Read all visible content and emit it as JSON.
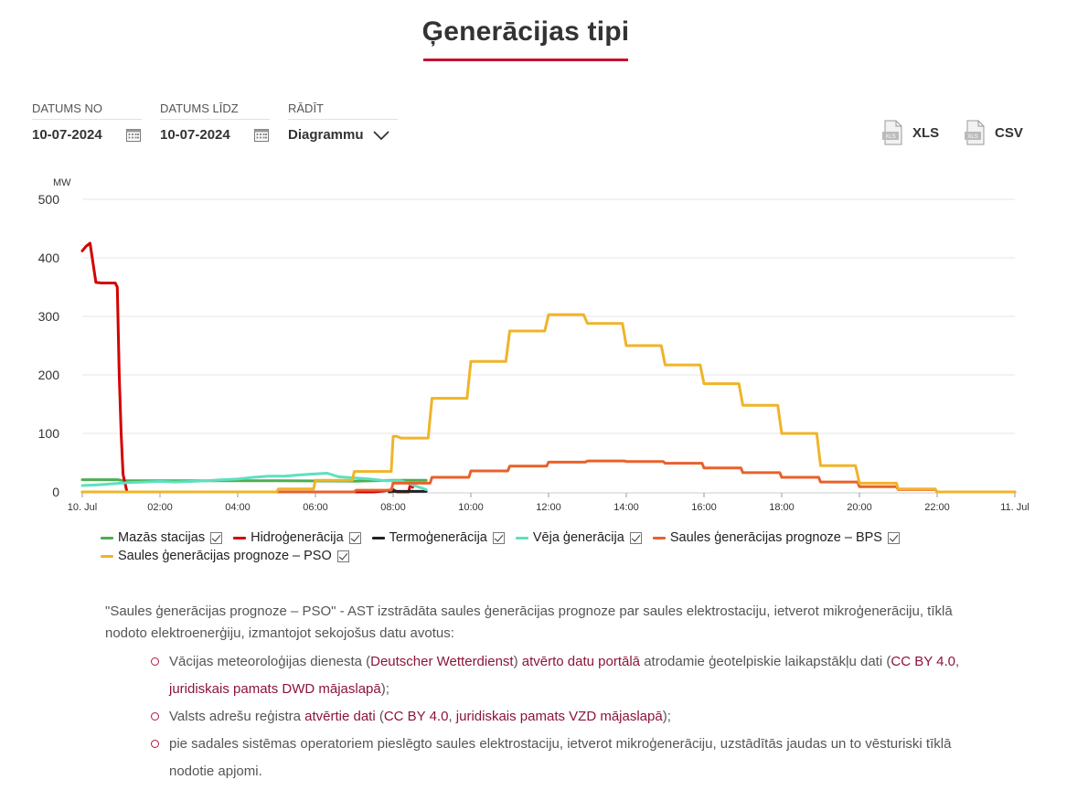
{
  "page": {
    "title": "Ģenerācijas tipi"
  },
  "filters": {
    "date_from": {
      "label": "DATUMS NO",
      "value": "10-07-2024"
    },
    "date_to": {
      "label": "DATUMS LĪDZ",
      "value": "10-07-2024"
    },
    "show": {
      "label": "RĀDĪT",
      "value": "Diagrammu"
    }
  },
  "exports": {
    "xls": "XLS",
    "csv": "CSV",
    "file_icon_text": "XLS"
  },
  "chart_data": {
    "type": "line",
    "ylabel": "MW",
    "ylim": [
      0,
      500
    ],
    "yticks": [
      0,
      100,
      200,
      300,
      400,
      500
    ],
    "xlim": [
      0,
      24
    ],
    "xticks": [
      {
        "x": 0,
        "label": "10. Jul"
      },
      {
        "x": 2,
        "label": "02:00"
      },
      {
        "x": 4,
        "label": "04:00"
      },
      {
        "x": 6,
        "label": "06:00"
      },
      {
        "x": 8,
        "label": "08:00"
      },
      {
        "x": 10,
        "label": "10:00"
      },
      {
        "x": 12,
        "label": "12:00"
      },
      {
        "x": 14,
        "label": "14:00"
      },
      {
        "x": 16,
        "label": "16:00"
      },
      {
        "x": 18,
        "label": "18:00"
      },
      {
        "x": 20,
        "label": "20:00"
      },
      {
        "x": 22,
        "label": "22:00"
      },
      {
        "x": 24,
        "label": "11. Jul"
      }
    ],
    "grid": true,
    "legend": "bottom",
    "series": [
      {
        "name": "Mazās stacijas",
        "color": "#4caf50",
        "points": [
          [
            0,
            21
          ],
          [
            0.9,
            21
          ],
          [
            1.1,
            19
          ],
          [
            3,
            19
          ],
          [
            5,
            19
          ],
          [
            7,
            18.5
          ],
          [
            8,
            20
          ],
          [
            8.85,
            20
          ]
        ]
      },
      {
        "name": "Hidroģenerācija",
        "color": "#d40000",
        "points": [
          [
            0,
            412
          ],
          [
            0.1,
            420
          ],
          [
            0.2,
            425
          ],
          [
            0.35,
            358
          ],
          [
            0.5,
            357
          ],
          [
            0.85,
            357
          ],
          [
            0.9,
            350
          ],
          [
            0.95,
            200
          ],
          [
            1.0,
            100
          ],
          [
            1.05,
            30
          ],
          [
            1.15,
            0
          ],
          [
            2,
            0
          ],
          [
            4,
            0
          ],
          [
            6,
            0
          ],
          [
            7,
            0
          ],
          [
            7.5,
            0
          ],
          [
            7.8,
            2
          ],
          [
            8.0,
            4
          ],
          [
            8.1,
            0
          ],
          [
            8.4,
            0
          ],
          [
            8.45,
            15
          ],
          [
            8.5,
            8
          ]
        ]
      },
      {
        "name": "Termoģenerācija",
        "color": "#222222",
        "points": [
          [
            7.9,
            0
          ],
          [
            8.0,
            1
          ],
          [
            8.5,
            1
          ],
          [
            8.85,
            1
          ]
        ]
      },
      {
        "name": "Vēja ģenerācija",
        "color": "#5ee0c0",
        "points": [
          [
            0,
            11
          ],
          [
            0.4,
            12
          ],
          [
            0.8,
            14
          ],
          [
            1.2,
            16
          ],
          [
            1.6,
            17
          ],
          [
            2.0,
            18
          ],
          [
            2.4,
            17
          ],
          [
            2.8,
            18
          ],
          [
            3.2,
            19
          ],
          [
            3.6,
            21
          ],
          [
            4.0,
            22
          ],
          [
            4.4,
            25
          ],
          [
            4.8,
            27
          ],
          [
            5.2,
            27
          ],
          [
            5.6,
            29
          ],
          [
            6.0,
            31
          ],
          [
            6.3,
            32
          ],
          [
            6.6,
            26
          ],
          [
            7.0,
            24
          ],
          [
            7.4,
            22
          ],
          [
            7.8,
            19
          ],
          [
            8.2,
            19
          ],
          [
            8.5,
            12
          ],
          [
            8.85,
            4
          ]
        ]
      },
      {
        "name": "Saules ģenerācijas prognoze – BPS",
        "color": "#e8612c",
        "points": [
          [
            0,
            0
          ],
          [
            7,
            0
          ],
          [
            7.05,
            3
          ],
          [
            7.95,
            3
          ],
          [
            8,
            15
          ],
          [
            8.95,
            15
          ],
          [
            9,
            25
          ],
          [
            9.95,
            25
          ],
          [
            10,
            36
          ],
          [
            10.95,
            36
          ],
          [
            11,
            44
          ],
          [
            11.95,
            44
          ],
          [
            12,
            51
          ],
          [
            12.95,
            51
          ],
          [
            13,
            53
          ],
          [
            13.95,
            53
          ],
          [
            14,
            52
          ],
          [
            14.95,
            52
          ],
          [
            15,
            49
          ],
          [
            15.95,
            49
          ],
          [
            16,
            41
          ],
          [
            16.95,
            41
          ],
          [
            17,
            33
          ],
          [
            17.95,
            33
          ],
          [
            18,
            25
          ],
          [
            18.95,
            25
          ],
          [
            19,
            17
          ],
          [
            19.95,
            17
          ],
          [
            20,
            9
          ],
          [
            20.95,
            9
          ],
          [
            21,
            4
          ],
          [
            21.95,
            4
          ],
          [
            22,
            0
          ],
          [
            24,
            0
          ]
        ]
      },
      {
        "name": "Saules ģenerācijas prognoze – PSO",
        "color": "#f0b429",
        "points": [
          [
            0,
            0
          ],
          [
            5,
            0
          ],
          [
            5.05,
            5
          ],
          [
            5.95,
            5
          ],
          [
            6,
            20
          ],
          [
            6.95,
            20
          ],
          [
            7,
            35
          ],
          [
            7.95,
            35
          ],
          [
            8,
            95
          ],
          [
            8.1,
            95
          ],
          [
            8.2,
            92
          ],
          [
            8.9,
            92
          ],
          [
            9,
            160
          ],
          [
            9.9,
            160
          ],
          [
            10,
            223
          ],
          [
            10.9,
            223
          ],
          [
            11,
            275
          ],
          [
            11.9,
            275
          ],
          [
            12,
            303
          ],
          [
            12.9,
            303
          ],
          [
            13,
            288
          ],
          [
            13.9,
            288
          ],
          [
            14,
            250
          ],
          [
            14.9,
            250
          ],
          [
            15,
            217
          ],
          [
            15.9,
            217
          ],
          [
            16,
            185
          ],
          [
            16.9,
            185
          ],
          [
            17,
            148
          ],
          [
            17.9,
            148
          ],
          [
            18,
            100
          ],
          [
            18.9,
            100
          ],
          [
            19,
            45
          ],
          [
            19.9,
            45
          ],
          [
            20,
            15
          ],
          [
            20.95,
            15
          ],
          [
            21,
            5
          ],
          [
            21.95,
            5
          ],
          [
            22,
            0
          ],
          [
            24,
            0
          ]
        ]
      }
    ]
  },
  "note": {
    "intro": "\"Saules ģenerācijas prognoze – PSO\" - AST izstrādāta saules ģenerācijas prognoze par saules elektrostaciju, ietverot mikroģenerāciju, tīklā nodoto elektroenerģiju, izmantojot sekojošus datu avotus:",
    "item1": {
      "t1": "Vācijas meteoroloģijas dienesta (",
      "l1": "Deutscher Wetterdienst",
      "t2": ") ",
      "l2": "atvērto datu portālā",
      "t3": " atrodamie ģeotelpiskie laikapstākļu dati (",
      "l3": "CC BY 4.0",
      "t4": ", ",
      "l4": "juridiskais pamats DWD mājaslapā",
      "t5": ");"
    },
    "item2": {
      "t1": "Valsts adrešu reģistra ",
      "l1": "atvērtie dati",
      "t2": " (",
      "l2": "CC BY 4.0",
      "t3": ", ",
      "l3": "juridiskais pamats VZD mājaslapā",
      "t4": ");"
    },
    "item3": {
      "t1": "pie sadales sistēmas operatoriem pieslēgto saules elektrostaciju, ietverot mikroģenerāciju, uzstādītās jaudas un to vēsturiski tīklā nodotie apjomi."
    }
  }
}
